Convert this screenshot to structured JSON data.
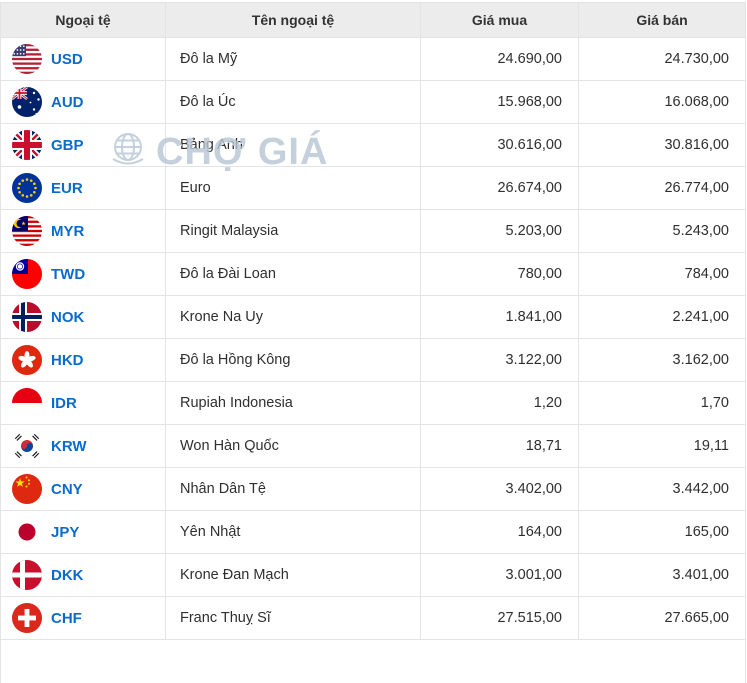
{
  "table": {
    "columns": [
      "Ngoại tệ",
      "Tên ngoại tệ",
      "Giá mua",
      "Giá bán"
    ],
    "rows": [
      {
        "flag": "us",
        "code": "USD",
        "name": "Đô la Mỹ",
        "buy": "24.690,00",
        "sell": "24.730,00"
      },
      {
        "flag": "au",
        "code": "AUD",
        "name": "Đô la Úc",
        "buy": "15.968,00",
        "sell": "16.068,00"
      },
      {
        "flag": "gb",
        "code": "GBP",
        "name": "Bảng Anh",
        "buy": "30.616,00",
        "sell": "30.816,00"
      },
      {
        "flag": "eu",
        "code": "EUR",
        "name": "Euro",
        "buy": "26.674,00",
        "sell": "26.774,00"
      },
      {
        "flag": "my",
        "code": "MYR",
        "name": "Ringit Malaysia",
        "buy": "5.203,00",
        "sell": "5.243,00"
      },
      {
        "flag": "tw",
        "code": "TWD",
        "name": "Đô la Đài Loan",
        "buy": "780,00",
        "sell": "784,00"
      },
      {
        "flag": "no",
        "code": "NOK",
        "name": "Krone Na Uy",
        "buy": "1.841,00",
        "sell": "2.241,00"
      },
      {
        "flag": "hk",
        "code": "HKD",
        "name": "Đô la Hồng Kông",
        "buy": "3.122,00",
        "sell": "3.162,00"
      },
      {
        "flag": "id",
        "code": "IDR",
        "name": "Rupiah Indonesia",
        "buy": "1,20",
        "sell": "1,70"
      },
      {
        "flag": "kr",
        "code": "KRW",
        "name": "Won Hàn Quốc",
        "buy": "18,71",
        "sell": "19,11"
      },
      {
        "flag": "cn",
        "code": "CNY",
        "name": "Nhân Dân Tệ",
        "buy": "3.402,00",
        "sell": "3.442,00"
      },
      {
        "flag": "jp",
        "code": "JPY",
        "name": "Yên Nhật",
        "buy": "164,00",
        "sell": "165,00"
      },
      {
        "flag": "dk",
        "code": "DKK",
        "name": "Krone Đan Mạch",
        "buy": "3.001,00",
        "sell": "3.401,00"
      },
      {
        "flag": "ch",
        "code": "CHF",
        "name": "Franc Thuỵ Sĩ",
        "buy": "27.515,00",
        "sell": "27.665,00"
      }
    ]
  },
  "watermark": {
    "text": "CHỢ GIÁ"
  },
  "colors": {
    "code_blue": "#0b6bcb",
    "header_bg": "#ececec",
    "border": "#e4e4e4",
    "watermark": "#b6c5d3"
  }
}
